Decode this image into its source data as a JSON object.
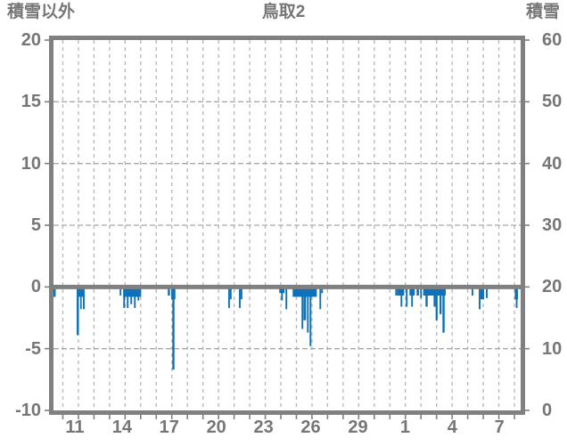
{
  "chart_data": {
    "type": "bar",
    "title": "鳥取2",
    "left_axis": {
      "label": "積雪以外",
      "max": 20,
      "min": -10,
      "tick_step": 5,
      "tick_labels": [
        "20",
        "15",
        "10",
        "5",
        "0",
        "-5",
        "-10"
      ],
      "h_grid_values": [
        15,
        10,
        5,
        -5
      ],
      "zero_line_value": 0
    },
    "right_axis": {
      "label": "積雪",
      "max": 60,
      "min": 0,
      "tick_step": 10,
      "tick_labels": [
        "60",
        "50",
        "40",
        "30",
        "20",
        "10",
        "0"
      ]
    },
    "x_axis": {
      "days": 30,
      "grid_every_days": 1,
      "grid_offset_days": 0.6,
      "tick_labels": [
        "11",
        "14",
        "17",
        "20",
        "23",
        "26",
        "29",
        "1",
        "4",
        "7"
      ],
      "first_label_pos_days": 1.37,
      "label_step_days": 3.03
    },
    "legend": "none",
    "grid": "dashed-daily-vertical-and-5unit-horizontal",
    "bars_plot_direction": "downward-from-zero",
    "bars": [
      {
        "x": 0.0,
        "w": 0.14,
        "v": -0.8
      },
      {
        "x": 1.49,
        "w": 0.14,
        "v": -3.9
      },
      {
        "x": 1.63,
        "w": 0.09,
        "v": -0.8
      },
      {
        "x": 1.72,
        "w": 0.09,
        "v": -1.8
      },
      {
        "x": 1.8,
        "w": 0.09,
        "v": -0.8
      },
      {
        "x": 1.89,
        "w": 0.11,
        "v": -1.8
      },
      {
        "x": 4.25,
        "w": 0.11,
        "v": -0.7
      },
      {
        "x": 4.48,
        "w": 1.15,
        "v": -0.8
      },
      {
        "x": 4.48,
        "w": 0.11,
        "v": -1.7
      },
      {
        "x": 4.71,
        "w": 0.11,
        "v": -1.7
      },
      {
        "x": 4.94,
        "w": 0.11,
        "v": -1.4
      },
      {
        "x": 5.17,
        "w": 0.11,
        "v": -1.7
      },
      {
        "x": 5.4,
        "w": 0.11,
        "v": -1.1
      },
      {
        "x": 7.34,
        "w": 0.14,
        "v": -0.7
      },
      {
        "x": 7.56,
        "w": 0.27,
        "v": -1.0
      },
      {
        "x": 7.63,
        "w": 0.14,
        "v": -6.7
      },
      {
        "x": 11.22,
        "w": 0.11,
        "v": -1.7
      },
      {
        "x": 11.33,
        "w": 0.11,
        "v": -1.0
      },
      {
        "x": 11.91,
        "w": 0.11,
        "v": -1.7
      },
      {
        "x": 12.02,
        "w": 0.11,
        "v": -1.0
      },
      {
        "x": 14.5,
        "w": 0.34,
        "v": -0.5
      },
      {
        "x": 14.62,
        "w": 0.11,
        "v": -1.1
      },
      {
        "x": 14.9,
        "w": 0.11,
        "v": -1.8
      },
      {
        "x": 15.36,
        "w": 1.55,
        "v": -0.8
      },
      {
        "x": 15.93,
        "w": 0.11,
        "v": -3.4
      },
      {
        "x": 16.05,
        "w": 0.17,
        "v": -2.7
      },
      {
        "x": 16.28,
        "w": 0.11,
        "v": -3.7
      },
      {
        "x": 16.45,
        "w": 0.11,
        "v": -4.8
      },
      {
        "x": 17.08,
        "w": 0.11,
        "v": -1.8
      },
      {
        "x": 17.19,
        "w": 0.11,
        "v": -0.5
      },
      {
        "x": 21.95,
        "w": 0.11,
        "v": -0.7
      },
      {
        "x": 22.06,
        "w": 0.46,
        "v": -0.7
      },
      {
        "x": 22.29,
        "w": 0.11,
        "v": -1.6
      },
      {
        "x": 22.63,
        "w": 0.11,
        "v": -1.6
      },
      {
        "x": 22.86,
        "w": 0.34,
        "v": -0.7
      },
      {
        "x": 22.97,
        "w": 0.11,
        "v": -1.6
      },
      {
        "x": 23.32,
        "w": 0.15,
        "v": -0.7
      },
      {
        "x": 23.55,
        "w": 0.11,
        "v": -0.9
      },
      {
        "x": 23.74,
        "w": 1.45,
        "v": -0.7
      },
      {
        "x": 23.89,
        "w": 0.14,
        "v": -1.6
      },
      {
        "x": 24.41,
        "w": 0.14,
        "v": -1.6
      },
      {
        "x": 24.54,
        "w": 0.13,
        "v": -2.7
      },
      {
        "x": 24.79,
        "w": 0.13,
        "v": -2.2
      },
      {
        "x": 24.98,
        "w": 0.14,
        "v": -3.7
      },
      {
        "x": 26.85,
        "w": 0.11,
        "v": -0.7
      },
      {
        "x": 27.31,
        "w": 0.11,
        "v": -1.8
      },
      {
        "x": 27.42,
        "w": 0.23,
        "v": -1.0
      },
      {
        "x": 27.77,
        "w": 0.11,
        "v": -0.9
      },
      {
        "x": 29.62,
        "w": 0.21,
        "v": -1.0
      },
      {
        "x": 29.69,
        "w": 0.11,
        "v": -1.7
      }
    ],
    "colors": {
      "bar": "#0d72ba",
      "frame": "#808080",
      "grid_v": "#b5b5b5",
      "grid_h": "#a8a8a8",
      "text": "#767676",
      "background": "#ffffff"
    }
  }
}
